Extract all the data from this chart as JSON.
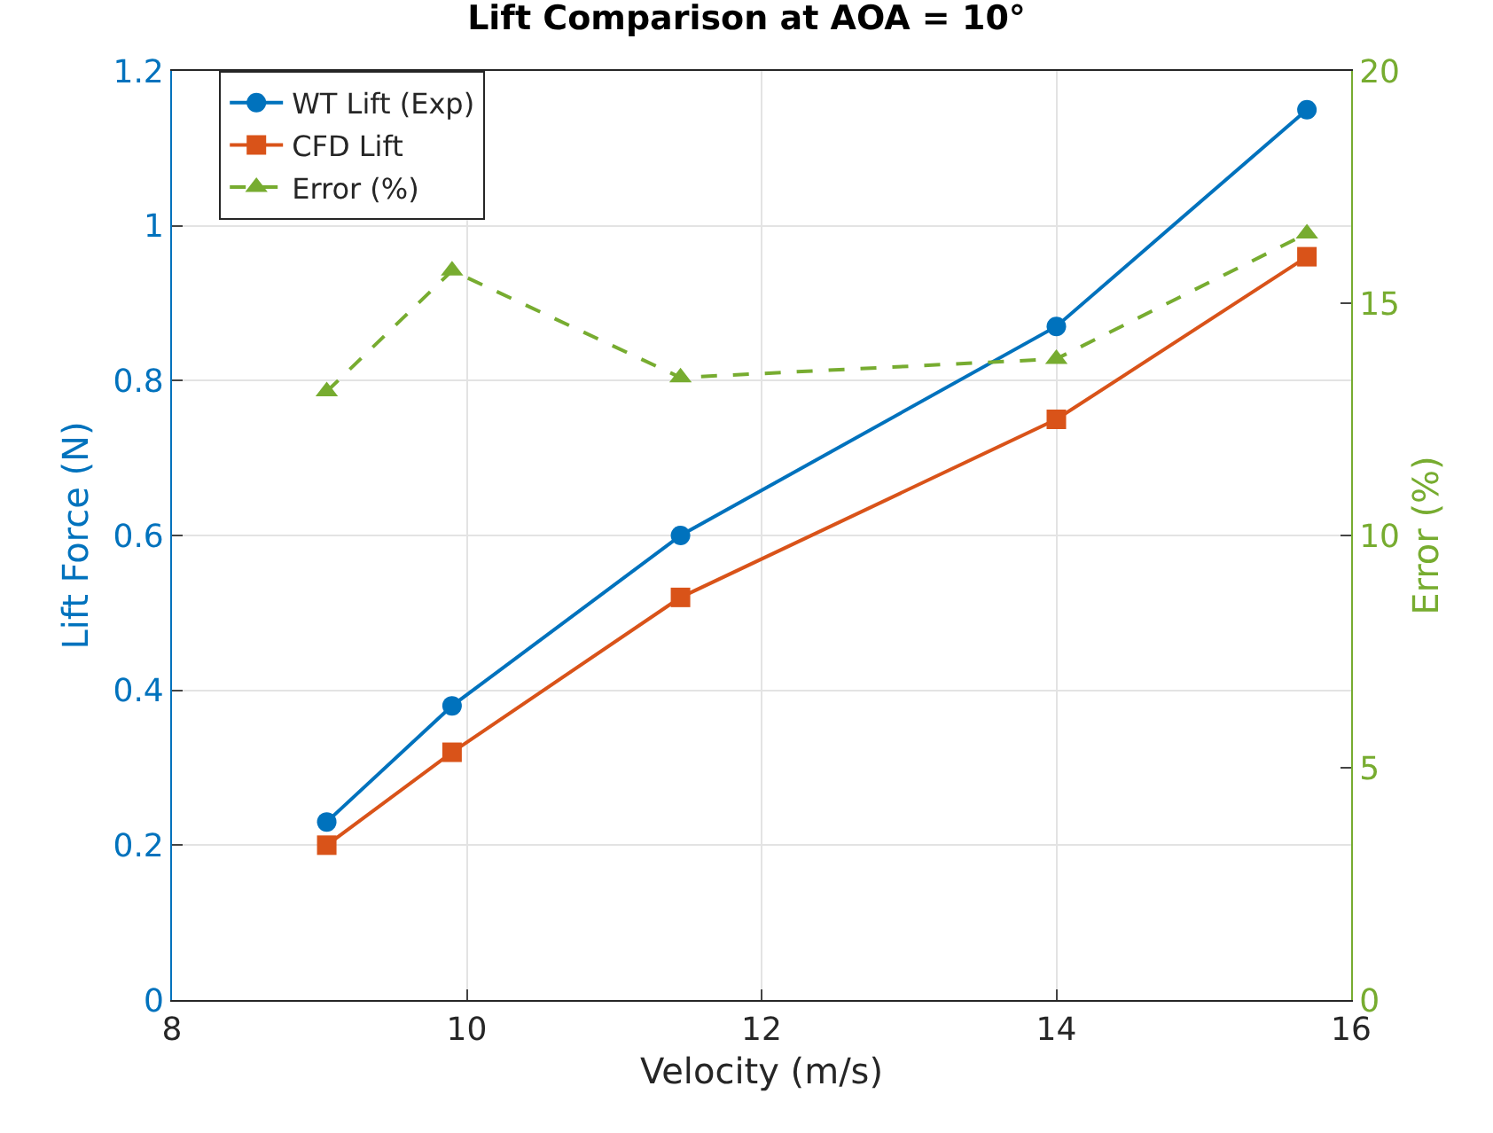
{
  "chart_data": {
    "type": "line",
    "title": "Lift Comparison at AOA = 10°",
    "xlabel": "Velocity (m/s)",
    "ylabel": "Lift Force (N)",
    "y2label": "Error (%)",
    "x": [
      9.05,
      9.9,
      11.45,
      14,
      15.7
    ],
    "series": [
      {
        "name": "WT Lift (Exp)",
        "color": "#0072bd",
        "values": [
          0.23,
          0.38,
          0.6,
          0.87,
          1.15
        ],
        "marker": "circle",
        "line_style": "solid"
      },
      {
        "name": "CFD Lift",
        "color": "#d95319",
        "values": [
          0.2,
          0.32,
          0.52,
          0.75,
          0.96
        ],
        "marker": "square",
        "line_style": "solid"
      },
      {
        "name": "Error (%)",
        "color": "#77ac30",
        "values": [
          13.1,
          15.7,
          13.4,
          13.8,
          16.5
        ],
        "marker": "triangle",
        "line_style": "dashed",
        "axis": "y2"
      }
    ],
    "xlim": [
      8,
      16
    ],
    "xticks": [
      8,
      10,
      12,
      14,
      16
    ],
    "ylim": [
      0,
      1.2
    ],
    "yticks": [
      0,
      0.2,
      0.4,
      0.6,
      0.8,
      1,
      1.2
    ],
    "y2lim": [
      0,
      20
    ],
    "y2ticks": [
      0,
      5,
      10,
      15,
      20
    ],
    "grid": true,
    "legend": "top left"
  }
}
